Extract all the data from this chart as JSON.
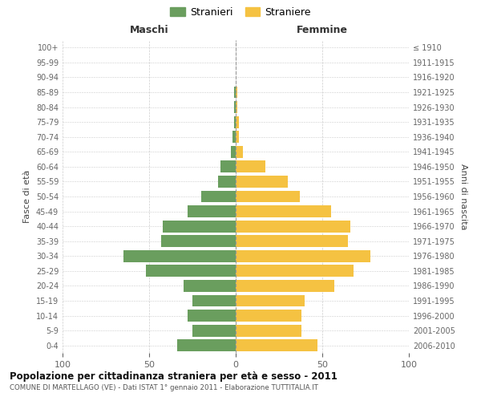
{
  "age_groups": [
    "0-4",
    "5-9",
    "10-14",
    "15-19",
    "20-24",
    "25-29",
    "30-34",
    "35-39",
    "40-44",
    "45-49",
    "50-54",
    "55-59",
    "60-64",
    "65-69",
    "70-74",
    "75-79",
    "80-84",
    "85-89",
    "90-94",
    "95-99",
    "100+"
  ],
  "birth_years": [
    "2006-2010",
    "2001-2005",
    "1996-2000",
    "1991-1995",
    "1986-1990",
    "1981-1985",
    "1976-1980",
    "1971-1975",
    "1966-1970",
    "1961-1965",
    "1956-1960",
    "1951-1955",
    "1946-1950",
    "1941-1945",
    "1936-1940",
    "1931-1935",
    "1926-1930",
    "1921-1925",
    "1916-1920",
    "1911-1915",
    "≤ 1910"
  ],
  "maschi": [
    34,
    25,
    28,
    25,
    30,
    52,
    65,
    43,
    42,
    28,
    20,
    10,
    9,
    3,
    2,
    1,
    1,
    1,
    0,
    0,
    0
  ],
  "femmine": [
    47,
    38,
    38,
    40,
    57,
    68,
    78,
    65,
    66,
    55,
    37,
    30,
    17,
    4,
    2,
    2,
    1,
    1,
    0,
    0,
    0
  ],
  "color_maschi": "#6a9e5e",
  "color_femmine": "#f5c242",
  "title": "Popolazione per cittadinanza straniera per età e sesso - 2011",
  "subtitle": "COMUNE DI MARTELLAGO (VE) - Dati ISTAT 1° gennaio 2011 - Elaborazione TUTTITALIA.IT",
  "label_maschi": "Stranieri",
  "label_femmine": "Straniere",
  "xlabel_left": "Maschi",
  "xlabel_right": "Femmine",
  "ylabel_left": "Fasce di età",
  "ylabel_right": "Anni di nascita",
  "xlim": 100,
  "bg_color": "#ffffff",
  "grid_color": "#cccccc",
  "tick_color": "#666666"
}
